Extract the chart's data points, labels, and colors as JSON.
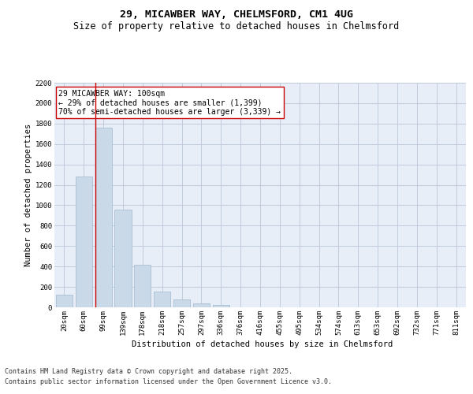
{
  "title_line1": "29, MICAWBER WAY, CHELMSFORD, CM1 4UG",
  "title_line2": "Size of property relative to detached houses in Chelmsford",
  "xlabel": "Distribution of detached houses by size in Chelmsford",
  "ylabel": "Number of detached properties",
  "categories": [
    "20sqm",
    "60sqm",
    "99sqm",
    "139sqm",
    "178sqm",
    "218sqm",
    "257sqm",
    "297sqm",
    "336sqm",
    "376sqm",
    "416sqm",
    "455sqm",
    "495sqm",
    "534sqm",
    "574sqm",
    "613sqm",
    "653sqm",
    "692sqm",
    "732sqm",
    "771sqm",
    "811sqm"
  ],
  "values": [
    120,
    1280,
    1760,
    960,
    420,
    155,
    75,
    35,
    20,
    0,
    0,
    0,
    0,
    0,
    0,
    0,
    0,
    0,
    0,
    0,
    0
  ],
  "bar_color": "#c9d9e8",
  "bar_edgecolor": "#a0b8cc",
  "vline_color": "#cc0000",
  "annotation_text": "29 MICAWBER WAY: 100sqm\n← 29% of detached houses are smaller (1,399)\n70% of semi-detached houses are larger (3,339) →",
  "annotation_box_edgecolor": "#cc0000",
  "annotation_box_facecolor": "#ffffff",
  "ylim": [
    0,
    2200
  ],
  "yticks": [
    0,
    200,
    400,
    600,
    800,
    1000,
    1200,
    1400,
    1600,
    1800,
    2000,
    2200
  ],
  "grid_color": "#c0ccdd",
  "axes_facecolor": "#e8eef8",
  "footer_line1": "Contains HM Land Registry data © Crown copyright and database right 2025.",
  "footer_line2": "Contains public sector information licensed under the Open Government Licence v3.0.",
  "title_fontsize": 9.5,
  "subtitle_fontsize": 8.5,
  "axis_label_fontsize": 7.5,
  "tick_fontsize": 6.5,
  "annotation_fontsize": 7,
  "footer_fontsize": 6
}
